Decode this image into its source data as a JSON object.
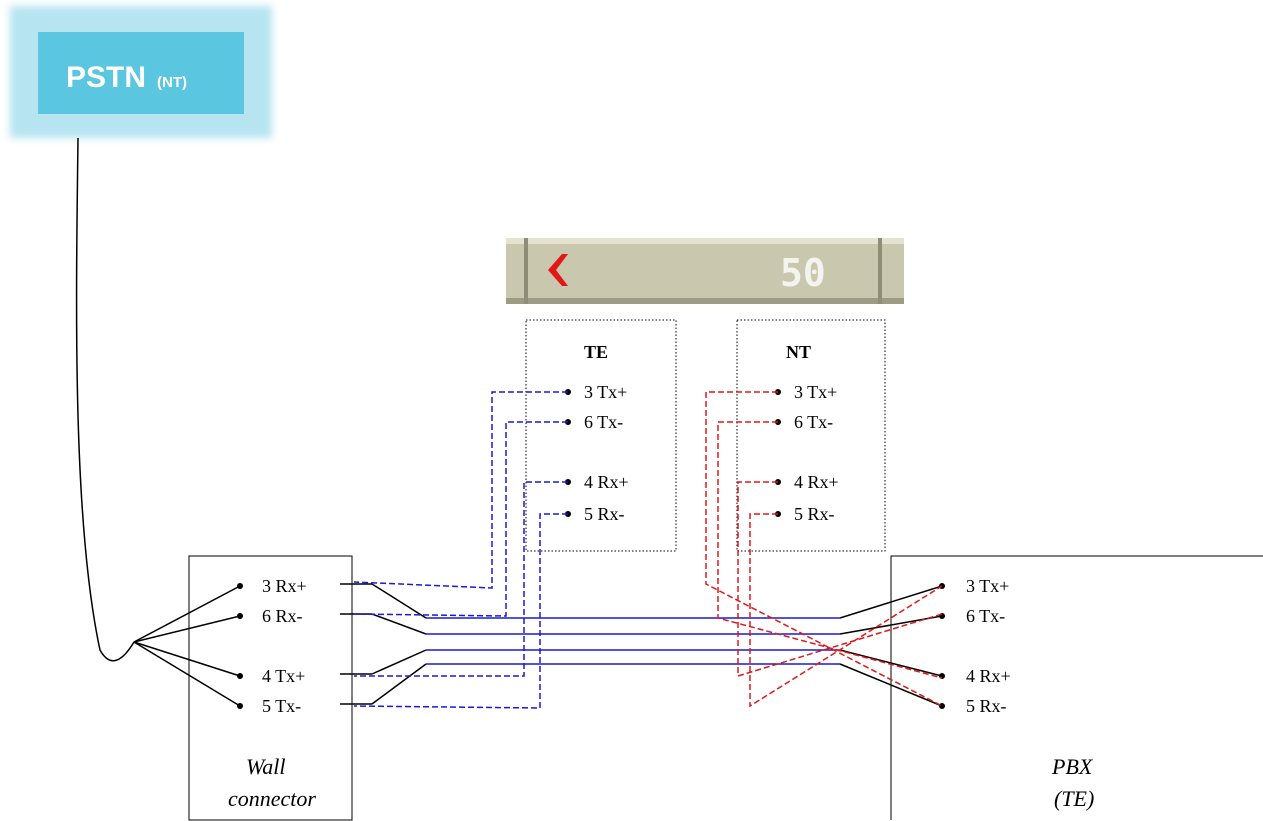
{
  "pstn": {
    "label": "PSTN",
    "suffix": "(NT)",
    "fill": "#5bc6e0",
    "border": "#b6e4f0"
  },
  "counter": {
    "value": "50",
    "arrow_color": "#e01818",
    "panel_color": "#c9c8ae"
  },
  "te_box": {
    "title": "TE",
    "pins": [
      "3 Tx+",
      "6 Tx-",
      "4 Rx+",
      "5 Rx-"
    ],
    "wire_color": "#1a1ad6"
  },
  "nt_box": {
    "title": "NT",
    "pins": [
      "3 Tx+",
      "6 Tx-",
      "4 Rx+",
      "5 Rx-"
    ],
    "wire_color": "#e01818"
  },
  "wall_connector": {
    "label_line1": "Wall",
    "label_line2": "connector",
    "pins": [
      "3 Rx+",
      "6 Rx-",
      "4 Tx+",
      "5 Tx-"
    ]
  },
  "pbx": {
    "label_line1": "PBX",
    "label_line2": "(TE)",
    "pins": [
      "3 Tx+",
      "6 Tx-",
      "4 Rx+",
      "5 Rx-"
    ]
  }
}
